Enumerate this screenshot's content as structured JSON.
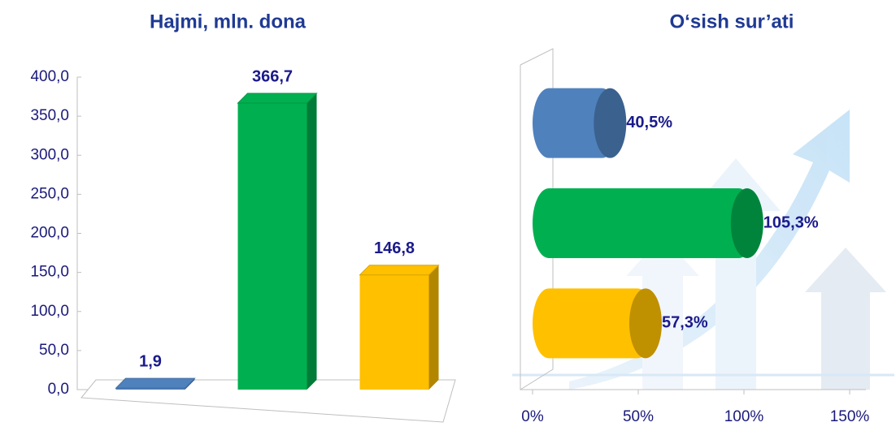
{
  "chart_data": [
    {
      "type": "bar",
      "title": "Hajmi, mln. dona",
      "categories": [
        null,
        null,
        null
      ],
      "values": [
        1.9,
        366.7,
        146.8
      ],
      "value_labels": [
        "1,9",
        "366,7",
        "146,8"
      ],
      "colors": [
        "#4f81bd",
        "#00b050",
        "#ffc000"
      ],
      "ylim": [
        0,
        400
      ],
      "yticks": [
        {
          "value": 0,
          "label": "0,0"
        },
        {
          "value": 50,
          "label": "50,0"
        },
        {
          "value": 100,
          "label": "100,0"
        },
        {
          "value": 150,
          "label": "150,0"
        },
        {
          "value": 200,
          "label": "200,0"
        },
        {
          "value": 250,
          "label": "250,0"
        },
        {
          "value": 300,
          "label": "300,0"
        },
        {
          "value": 350,
          "label": "350,0"
        },
        {
          "value": 400,
          "label": "400,0"
        }
      ]
    },
    {
      "type": "hbar",
      "title": "O‘sish sur’ati",
      "categories": [
        null,
        null,
        null
      ],
      "values": [
        40.5,
        105.3,
        57.3
      ],
      "value_labels": [
        "40,5%",
        "105,3%",
        "57,3%"
      ],
      "colors": [
        "#4f81bd",
        "#00b050",
        "#ffc000"
      ],
      "xlim": [
        0,
        150
      ],
      "xticks": [
        {
          "value": 0,
          "label": "0%"
        },
        {
          "value": 50,
          "label": "50%"
        },
        {
          "value": 100,
          "label": "100%"
        },
        {
          "value": 150,
          "label": "150%"
        }
      ]
    }
  ]
}
